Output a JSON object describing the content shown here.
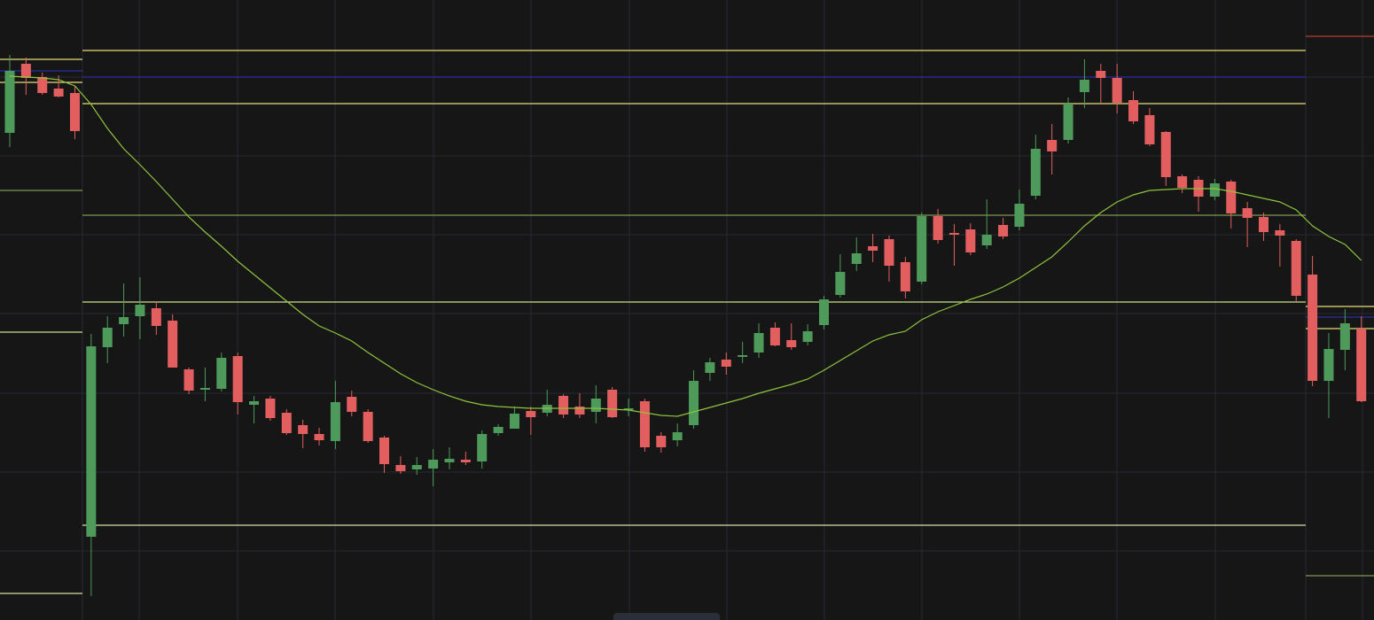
{
  "chart_data": {
    "type": "candlestick",
    "ylim": [
      0,
      700
    ],
    "grid": true,
    "up_color": "#4e9a5a",
    "down_color": "#e35f5f",
    "open": [
      550,
      628,
      613,
      600,
      595,
      94,
      308,
      334,
      343,
      352,
      338,
      283,
      260,
      261,
      298,
      243,
      250,
      234,
      220,
      210,
      202,
      252,
      235,
      206,
      175,
      170,
      171,
      178,
      181,
      179,
      211,
      216,
      236,
      234,
      253,
      241,
      235,
      260,
      237,
      247,
      208,
      203,
      220,
      279,
      294,
      297,
      302,
      330,
      316,
      314,
      333,
      367,
      402,
      422,
      430,
      404,
      382,
      456,
      437,
      441,
      423,
      446,
      444,
      479,
      542,
      542,
      596,
      620,
      612,
      587,
      570,
      551,
      501,
      497,
      478,
      495,
      465,
      455,
      440,
      428,
      390,
      270,
      305,
      329
    ],
    "high": [
      638,
      635,
      618,
      615,
      602,
      323,
      343,
      380,
      387,
      360,
      345,
      285,
      285,
      302,
      302,
      253,
      253,
      238,
      226,
      217,
      270,
      259,
      238,
      208,
      185,
      184,
      193,
      195,
      190,
      214,
      221,
      241,
      241,
      260,
      255,
      256,
      265,
      263,
      250,
      250,
      212,
      222,
      282,
      296,
      302,
      314,
      335,
      336,
      335,
      334,
      366,
      413,
      432,
      436,
      434,
      410,
      460,
      464,
      447,
      448,
      475,
      454,
      486,
      548,
      560,
      590,
      633,
      628,
      628,
      597,
      578,
      552,
      503,
      501,
      498,
      497,
      472,
      460,
      447,
      430,
      411,
      324,
      351,
      343
    ],
    "low": [
      534,
      593,
      593,
      590,
      543,
      27,
      290,
      320,
      317,
      322,
      285,
      255,
      247,
      258,
      232,
      222,
      225,
      209,
      194,
      197,
      193,
      230,
      200,
      166,
      165,
      164,
      151,
      170,
      175,
      171,
      208,
      216,
      209,
      230,
      228,
      228,
      222,
      228,
      230,
      190,
      189,
      196,
      216,
      270,
      277,
      290,
      296,
      309,
      305,
      310,
      328,
      364,
      394,
      404,
      382,
      363,
      379,
      425,
      400,
      412,
      419,
      430,
      440,
      475,
      503,
      538,
      578,
      583,
      572,
      560,
      535,
      490,
      482,
      461,
      474,
      442,
      421,
      428,
      399,
      360,
      264,
      228,
      282,
      246
    ],
    "close": [
      620,
      612,
      595,
      591,
      552,
      309,
      330,
      342,
      356,
      332,
      285,
      259,
      262,
      296,
      246,
      247,
      228,
      211,
      210,
      203,
      246,
      235,
      202,
      176,
      168,
      175,
      181,
      182,
      178,
      210,
      218,
      233,
      229,
      243,
      232,
      232,
      250,
      229,
      239,
      195,
      195,
      212,
      270,
      291,
      286,
      299,
      324,
      310,
      308,
      326,
      362,
      393,
      414,
      417,
      400,
      371,
      456,
      429,
      435,
      415,
      435,
      433,
      470,
      532,
      529,
      583,
      610,
      612,
      584,
      563,
      537,
      500,
      488,
      478,
      493,
      459,
      454,
      438,
      434,
      366,
      270,
      306,
      335,
      247
    ],
    "ma": {
      "color": "#8fc43d",
      "values": [
        614,
        613,
        612,
        610,
        603,
        582,
        555,
        532,
        514,
        495,
        475,
        455,
        438,
        422,
        405,
        390,
        375,
        360,
        345,
        332,
        324,
        315,
        302,
        290,
        278,
        268,
        260,
        253,
        247,
        243,
        241,
        240,
        239,
        239,
        239,
        239,
        239,
        238,
        237,
        234,
        231,
        230,
        235,
        240,
        245,
        250,
        256,
        261,
        266,
        272,
        282,
        293,
        304,
        315,
        322,
        326,
        339,
        348,
        355,
        362,
        368,
        376,
        386,
        398,
        410,
        427,
        445,
        460,
        472,
        480,
        485,
        486,
        487,
        487,
        487,
        484,
        480,
        476,
        472,
        463,
        445,
        433,
        424,
        406
      ]
    },
    "levels": [
      {
        "value": 643,
        "color": "#e6dd78"
      },
      {
        "value": 613,
        "color": "#2b2fa3"
      },
      {
        "value": 583,
        "color": "#e6dd78"
      },
      {
        "value": 457,
        "color": "#7f9a55"
      },
      {
        "value": 359,
        "color": "#c9de8c"
      },
      {
        "value": 107,
        "color": "#d6e3a2"
      }
    ]
  }
}
